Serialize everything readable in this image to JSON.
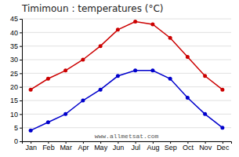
{
  "chart_data": {
    "type": "line",
    "title": "Timimoun : temperatures (°C)",
    "categories": [
      "Jan",
      "Feb",
      "Mar",
      "Apr",
      "May",
      "Jun",
      "Jul",
      "Aug",
      "Sep",
      "Oct",
      "Nov",
      "Dec"
    ],
    "series": [
      {
        "color": "#cc0000",
        "values": [
          19,
          23,
          26,
          30,
          35,
          41,
          44,
          43,
          38,
          31,
          24,
          19
        ]
      },
      {
        "color": "#0000cc",
        "values": [
          4,
          7,
          10,
          15,
          19,
          24,
          26,
          26,
          23,
          16,
          10,
          5
        ]
      }
    ],
    "ylim": [
      0,
      45
    ],
    "yticks": [
      0,
      5,
      10,
      15,
      20,
      25,
      30,
      35,
      40,
      45
    ],
    "grid": true,
    "marker": "circle",
    "annotations": [
      "www.allmetsat.com"
    ]
  }
}
